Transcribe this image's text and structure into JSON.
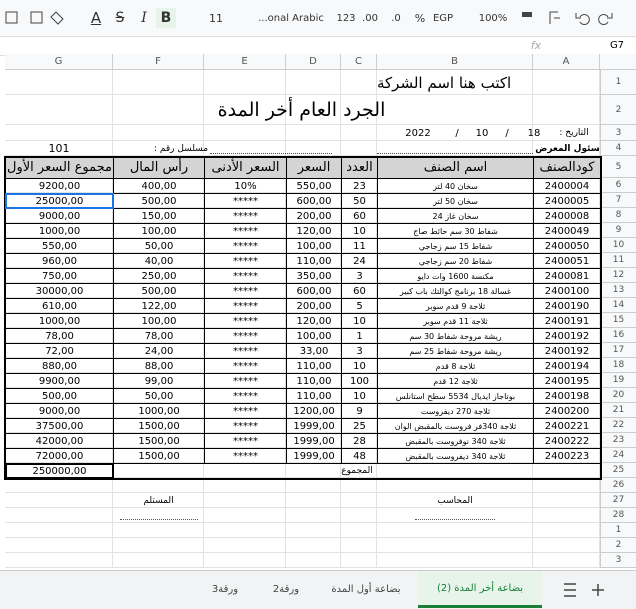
{
  "toolbar": {
    "text_color": "A",
    "strike": "S",
    "italic": "I",
    "bold": "B",
    "font_size": "11",
    "font": "...onal Arabic",
    "number_format": "123",
    "decimal_more": ".00",
    "decimal_less": ".0",
    "percent": "%",
    "currency": "EGP",
    "zoom": "100%"
  },
  "formula_bar": {
    "cell": "G7",
    "fx": "fx"
  },
  "columns": [
    "G",
    "F",
    "E",
    "D",
    "C",
    "B",
    "A"
  ],
  "row_numbers": [
    1,
    2,
    3,
    4,
    5,
    6,
    7,
    8,
    9,
    10,
    11,
    12,
    13,
    14,
    15,
    16,
    17,
    18,
    19,
    20,
    21,
    22,
    23,
    24,
    25,
    26,
    27,
    28,
    1,
    2,
    3
  ],
  "header": {
    "company": "اكتب هنا اسم الشركة",
    "title": "الجرد العام أخر المدة",
    "date_label": "التاريخ :",
    "day": "18",
    "sep1": "/",
    "month": "10",
    "sep2": "/",
    "year": "2022",
    "manager_label": "مسئول المعرض :",
    "serial_label": "مسلسل رقم :",
    "serial": "101"
  },
  "table": {
    "columns": [
      "كودالصنف",
      "اسم الصنف",
      "العدد",
      "السعر",
      "السعر الأدنى",
      "رأس المال",
      "مجموع السعر الأول"
    ],
    "rows": [
      [
        "2400004",
        "سخان 40 لتر",
        "23",
        "550,00",
        "10%",
        "400,00",
        "9200,00"
      ],
      [
        "2400005",
        "سخان 50 لتر",
        "50",
        "600,00",
        "*****",
        "500,00",
        "25000,00"
      ],
      [
        "2400008",
        "سخان غاز 24",
        "60",
        "200,00",
        "*****",
        "150,00",
        "9000,00"
      ],
      [
        "2400049",
        "شفاط 30 سم حائط صاج",
        "10",
        "120,00",
        "*****",
        "100,00",
        "1000,00"
      ],
      [
        "2400050",
        "شفاط 15 سم زجاجي",
        "11",
        "100,00",
        "*****",
        "50,00",
        "550,00"
      ],
      [
        "2400051",
        "شفاط 20 سم زجاجي",
        "24",
        "110,00",
        "*****",
        "40,00",
        "960,00"
      ],
      [
        "2400081",
        "مكنسة 1600 وات دايو",
        "3",
        "350,00",
        "*****",
        "250,00",
        "750,00"
      ],
      [
        "2400100",
        "غسالة 18 برنامج كوالتك باب كبير",
        "60",
        "600,00",
        "*****",
        "500,00",
        "30000,00"
      ],
      [
        "2400190",
        "ثلاجة 9 قدم سوبر",
        "5",
        "200,00",
        "*****",
        "122,00",
        "610,00"
      ],
      [
        "2400191",
        "ثلاجة 11 قدم سوبر",
        "10",
        "120,00",
        "*****",
        "100,00",
        "1000,00"
      ],
      [
        "2400192",
        "ريشة مروحة شفاط 30 سم",
        "1",
        "100,00",
        "*****",
        "78,00",
        "78,00"
      ],
      [
        "2400192",
        "ريشة مروحة شفاط 25 سم",
        "3",
        "33,00",
        "*****",
        "24,00",
        "72,00"
      ],
      [
        "2400194",
        "ثلاجة 8 قدم",
        "10",
        "110,00",
        "*****",
        "88,00",
        "880,00"
      ],
      [
        "2400195",
        "ثلاجة 12 قدم",
        "100",
        "110,00",
        "*****",
        "99,00",
        "9900,00"
      ],
      [
        "2400198",
        "بوتاجاز ايديال 5534 سطح استانلس",
        "10",
        "110,00",
        "*****",
        "50,00",
        "500,00"
      ],
      [
        "2400200",
        "ثلاجة 270 ديفروست",
        "9",
        "1200,00",
        "*****",
        "1000,00",
        "9000,00"
      ],
      [
        "2400221",
        "ثلاجة 340فر فروست بالمقبض الوان",
        "25",
        "1999,00",
        "*****",
        "1500,00",
        "37500,00"
      ],
      [
        "2400222",
        "ثلاجة 340 نوفروست بالمقبض",
        "28",
        "1999,00",
        "*****",
        "1500,00",
        "42000,00"
      ],
      [
        "2400223",
        "ثلاجة 340 ديفروست بالمقبض",
        "48",
        "1999,00",
        "*****",
        "1500,00",
        "72000,00"
      ]
    ],
    "total_label": "المجموع",
    "total": "250000,00"
  },
  "signatures": {
    "receiver": "المستلم",
    "accountant": "المحاسب"
  },
  "tabs": [
    "بضاعة أخر المدة (2)",
    "بضاعة أول المدة",
    "ورقة2",
    "ورقة3"
  ]
}
